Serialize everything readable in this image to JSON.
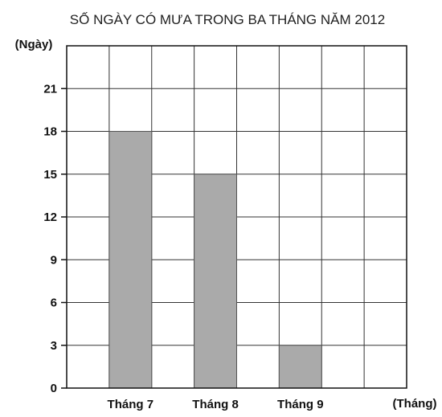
{
  "chart_data": {
    "type": "bar",
    "title": "SỐ NGÀY CÓ MƯA TRONG BA THÁNG NĂM 2012",
    "ylabel": "(Ngày)",
    "xlabel": "(Tháng)",
    "categories": [
      "Tháng 7",
      "Tháng 8",
      "Tháng 9"
    ],
    "values": [
      18,
      15,
      3
    ],
    "yticks": [
      0,
      3,
      6,
      9,
      12,
      15,
      18,
      21
    ],
    "ylim": [
      0,
      24
    ],
    "grid": true,
    "bar_color": "#aaaaaa",
    "grid_color": "#333333"
  }
}
